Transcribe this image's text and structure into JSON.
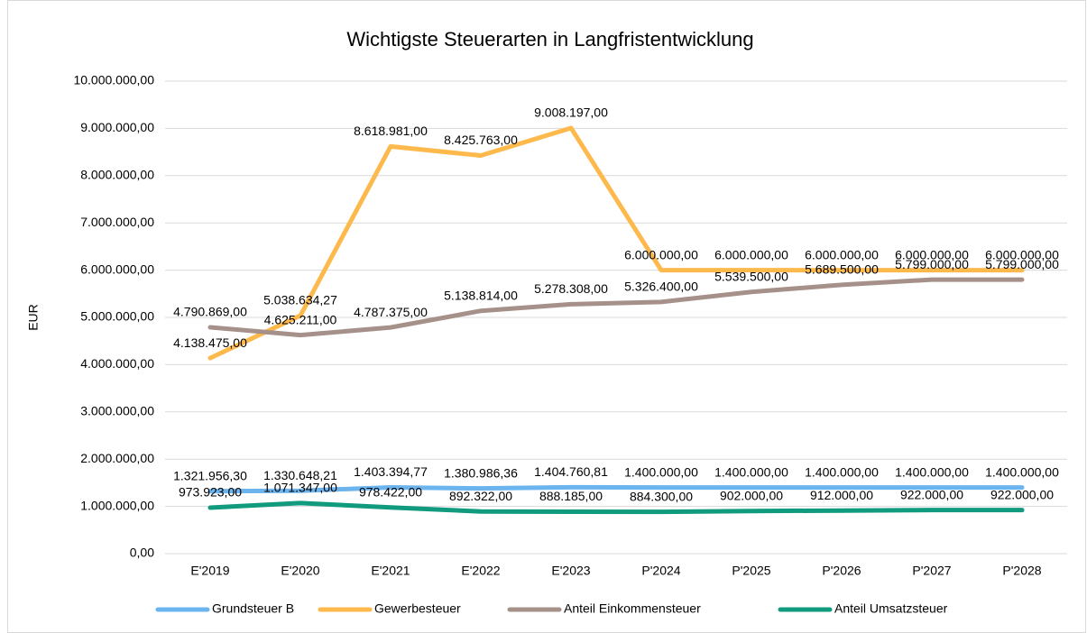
{
  "chart_data": {
    "type": "line",
    "title": "Wichtigste Steuerarten in Langfristentwicklung",
    "ylabel": "EUR",
    "categories": [
      "E'2019",
      "E'2020",
      "E'2021",
      "E'2022",
      "E'2023",
      "P'2024",
      "P'2025",
      "P'2026",
      "P'2027",
      "P'2028"
    ],
    "ylim": [
      0,
      10000000
    ],
    "yticks": [
      {
        "value": 0,
        "label": "0,00"
      },
      {
        "value": 1000000,
        "label": "1.000.000,00"
      },
      {
        "value": 2000000,
        "label": "2.000.000,00"
      },
      {
        "value": 3000000,
        "label": "3.000.000,00"
      },
      {
        "value": 4000000,
        "label": "4.000.000,00"
      },
      {
        "value": 5000000,
        "label": "5.000.000,00"
      },
      {
        "value": 6000000,
        "label": "6.000.000,00"
      },
      {
        "value": 7000000,
        "label": "7.000.000,00"
      },
      {
        "value": 8000000,
        "label": "8.000.000,00"
      },
      {
        "value": 9000000,
        "label": "9.000.000,00"
      },
      {
        "value": 10000000,
        "label": "10.000.000,00"
      }
    ],
    "grid": true,
    "legend": "bottom",
    "series": [
      {
        "name": "Grundsteuer B",
        "color": "#6cb4ee",
        "values": [
          1321956.3,
          1330648.21,
          1403394.77,
          1380986.36,
          1404760.81,
          1400000,
          1400000,
          1400000,
          1400000,
          1400000
        ],
        "value_labels": [
          "1.321.956,30",
          "1.330.648,21",
          "1.403.394,77",
          "1.380.986,36",
          "1.404.760,81",
          "1.400.000,00",
          "1.400.000,00",
          "1.400.000,00",
          "1.400.000,00",
          "1.400.000,00"
        ]
      },
      {
        "name": "Gewerbesteuer",
        "color": "#fdb94c",
        "values": [
          4138475,
          5038634.27,
          8618981,
          8425763,
          9008197,
          6000000,
          6000000,
          6000000,
          6000000,
          6000000
        ],
        "value_labels": [
          "4.138.475,00",
          "5.038.634,27",
          "8.618.981,00",
          "8.425.763,00",
          "9.008.197,00",
          "6.000.000,00",
          "6.000.000,00",
          "6.000.000,00",
          "6.000.000,00",
          "6.000.000,00"
        ]
      },
      {
        "name": "Anteil Einkommensteuer",
        "color": "#a6918a",
        "values": [
          4790869,
          4625211,
          4787375,
          5138814,
          5278308,
          5326400,
          5539500,
          5689500,
          5799000,
          5799000
        ],
        "value_labels": [
          "4.790.869,00",
          "4.625.211,00",
          "4.787.375,00",
          "5.138.814,00",
          "5.278.308,00",
          "5.326.400,00",
          "5.539.500,00",
          "5.689.500,00",
          "5.799.000,00",
          "5.799.000,00"
        ]
      },
      {
        "name": "Anteil Umsatzsteuer",
        "color": "#109a7e",
        "values": [
          973923,
          1071347,
          978422,
          892322,
          888185,
          884300,
          902000,
          912000,
          922000,
          922000
        ],
        "value_labels": [
          "973.923,00",
          "1.071.347,00",
          "978.422,00",
          "892.322,00",
          "888.185,00",
          "884.300,00",
          "902.000,00",
          "912.000,00",
          "922.000,00",
          "922.000,00"
        ]
      }
    ]
  }
}
